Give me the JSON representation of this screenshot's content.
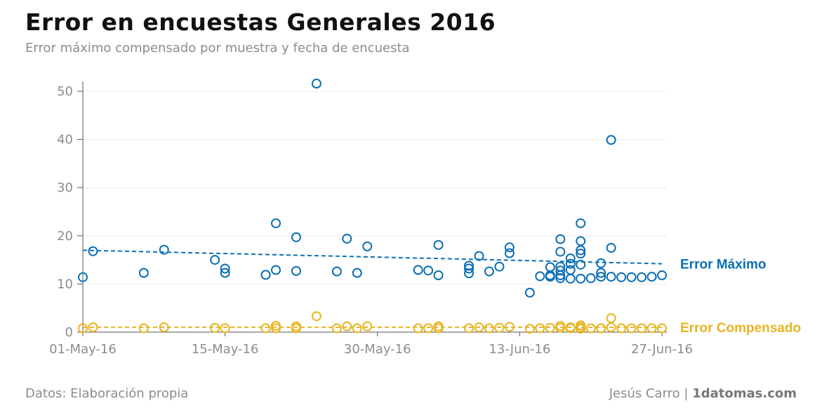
{
  "header": {
    "title": "Error en encuestas Generales 2016",
    "subtitle": "Error máximo compensado por muestra y fecha de encuesta"
  },
  "footer": {
    "source": "Datos: Elaboración propia",
    "author": "Jesús Carro",
    "separator": "|",
    "site": "1datomas.com"
  },
  "chart_data": {
    "type": "scatter",
    "grid": true,
    "xlim": [
      "2016-05-01",
      "2016-06-28"
    ],
    "ylim": [
      0,
      52
    ],
    "x_ticks": [
      {
        "date": "2016-05-01",
        "label": "01-May-16"
      },
      {
        "date": "2016-05-15",
        "label": "15-May-16"
      },
      {
        "date": "2016-05-30",
        "label": "30-May-16"
      },
      {
        "date": "2016-06-13",
        "label": "13-Jun-16"
      },
      {
        "date": "2016-06-27",
        "label": "27-Jun-16"
      }
    ],
    "y_ticks": [
      0,
      10,
      20,
      30,
      40,
      50
    ],
    "series": [
      {
        "name": "Error Máximo",
        "color": "#0a6fb5",
        "trend": {
          "from": [
            "2016-05-01",
            17.0
          ],
          "to": [
            "2016-06-27",
            14.2
          ]
        },
        "points": [
          [
            "2016-05-01",
            11.4
          ],
          [
            "2016-05-02",
            16.8
          ],
          [
            "2016-05-07",
            12.3
          ],
          [
            "2016-05-09",
            17.1
          ],
          [
            "2016-05-14",
            15.0
          ],
          [
            "2016-05-15",
            13.2
          ],
          [
            "2016-05-15",
            12.3
          ],
          [
            "2016-05-19",
            11.9
          ],
          [
            "2016-05-20",
            22.6
          ],
          [
            "2016-05-20",
            12.9
          ],
          [
            "2016-05-22",
            19.7
          ],
          [
            "2016-05-22",
            12.7
          ],
          [
            "2016-05-24",
            51.6
          ],
          [
            "2016-05-26",
            12.6
          ],
          [
            "2016-05-27",
            19.4
          ],
          [
            "2016-05-28",
            12.3
          ],
          [
            "2016-05-29",
            17.8
          ],
          [
            "2016-06-03",
            12.9
          ],
          [
            "2016-06-04",
            12.8
          ],
          [
            "2016-06-05",
            18.1
          ],
          [
            "2016-06-05",
            11.8
          ],
          [
            "2016-06-08",
            13.8
          ],
          [
            "2016-06-08",
            13.2
          ],
          [
            "2016-06-08",
            12.2
          ],
          [
            "2016-06-09",
            15.8
          ],
          [
            "2016-06-10",
            12.6
          ],
          [
            "2016-06-11",
            13.6
          ],
          [
            "2016-06-12",
            17.6
          ],
          [
            "2016-06-12",
            16.4
          ],
          [
            "2016-06-14",
            8.2
          ],
          [
            "2016-06-15",
            11.6
          ],
          [
            "2016-06-16",
            13.5
          ],
          [
            "2016-06-16",
            11.8
          ],
          [
            "2016-06-16",
            11.5
          ],
          [
            "2016-06-17",
            19.3
          ],
          [
            "2016-06-17",
            16.7
          ],
          [
            "2016-06-17",
            13.6
          ],
          [
            "2016-06-17",
            12.8
          ],
          [
            "2016-06-17",
            11.8
          ],
          [
            "2016-06-17",
            11.2
          ],
          [
            "2016-06-18",
            15.3
          ],
          [
            "2016-06-18",
            14.2
          ],
          [
            "2016-06-18",
            12.9
          ],
          [
            "2016-06-18",
            11.1
          ],
          [
            "2016-06-19",
            22.6
          ],
          [
            "2016-06-19",
            18.9
          ],
          [
            "2016-06-19",
            17.0
          ],
          [
            "2016-06-19",
            16.3
          ],
          [
            "2016-06-19",
            14.0
          ],
          [
            "2016-06-19",
            11.1
          ],
          [
            "2016-06-20",
            11.2
          ],
          [
            "2016-06-21",
            14.3
          ],
          [
            "2016-06-21",
            12.3
          ],
          [
            "2016-06-21",
            11.5
          ],
          [
            "2016-06-22",
            39.9
          ],
          [
            "2016-06-22",
            17.5
          ],
          [
            "2016-06-22",
            11.5
          ],
          [
            "2016-06-23",
            11.4
          ],
          [
            "2016-06-24",
            11.4
          ],
          [
            "2016-06-25",
            11.4
          ],
          [
            "2016-06-26",
            11.5
          ],
          [
            "2016-06-27",
            11.8
          ]
        ]
      },
      {
        "name": "Error Compensado",
        "color": "#e8b422",
        "trend": {
          "from": [
            "2016-05-01",
            1.0
          ],
          "to": [
            "2016-06-27",
            1.0
          ]
        },
        "points": [
          [
            "2016-05-01",
            0.8
          ],
          [
            "2016-05-02",
            1.0
          ],
          [
            "2016-05-07",
            0.8
          ],
          [
            "2016-05-09",
            1.0
          ],
          [
            "2016-05-14",
            0.9
          ],
          [
            "2016-05-15",
            0.8
          ],
          [
            "2016-05-19",
            0.8
          ],
          [
            "2016-05-20",
            1.3
          ],
          [
            "2016-05-20",
            0.8
          ],
          [
            "2016-05-22",
            1.2
          ],
          [
            "2016-05-22",
            0.8
          ],
          [
            "2016-05-24",
            3.3
          ],
          [
            "2016-05-26",
            0.8
          ],
          [
            "2016-05-27",
            1.2
          ],
          [
            "2016-05-28",
            0.8
          ],
          [
            "2016-05-29",
            1.2
          ],
          [
            "2016-06-03",
            0.8
          ],
          [
            "2016-06-04",
            0.8
          ],
          [
            "2016-06-05",
            1.2
          ],
          [
            "2016-06-05",
            0.8
          ],
          [
            "2016-06-08",
            0.8
          ],
          [
            "2016-06-09",
            1.0
          ],
          [
            "2016-06-10",
            0.8
          ],
          [
            "2016-06-11",
            0.9
          ],
          [
            "2016-06-12",
            1.1
          ],
          [
            "2016-06-14",
            0.7
          ],
          [
            "2016-06-15",
            0.8
          ],
          [
            "2016-06-16",
            0.9
          ],
          [
            "2016-06-17",
            1.3
          ],
          [
            "2016-06-17",
            0.9
          ],
          [
            "2016-06-18",
            1.0
          ],
          [
            "2016-06-18",
            0.8
          ],
          [
            "2016-06-19",
            1.4
          ],
          [
            "2016-06-19",
            1.0
          ],
          [
            "2016-06-19",
            0.7
          ],
          [
            "2016-06-20",
            0.8
          ],
          [
            "2016-06-21",
            0.8
          ],
          [
            "2016-06-22",
            2.9
          ],
          [
            "2016-06-22",
            1.0
          ],
          [
            "2016-06-23",
            0.8
          ],
          [
            "2016-06-24",
            0.8
          ],
          [
            "2016-06-25",
            0.8
          ],
          [
            "2016-06-26",
            0.8
          ],
          [
            "2016-06-27",
            0.8
          ]
        ]
      }
    ]
  }
}
